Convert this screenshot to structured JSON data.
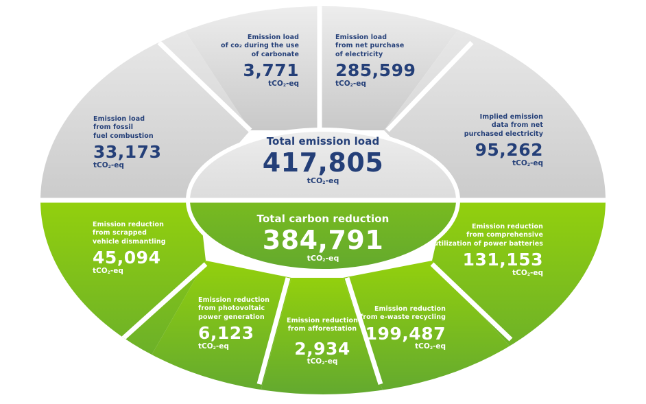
{
  "colors": {
    "grey_light": "#ececec",
    "grey_dark": "#c9c9c9",
    "green_light": "#92cf0e",
    "green_dark": "#62a82f",
    "text_blue": "#243f78",
    "text_white": "#ffffff",
    "divider": "#ffffff"
  },
  "unit": "tCO",
  "unit_sub": "2",
  "unit_suffix": "-eq",
  "emission": {
    "total": {
      "title": "Total emission load",
      "value": "417,805"
    },
    "sectors": [
      {
        "caption": "Emission load\nfrom fossil\nfuel combustion",
        "value": "33,173"
      },
      {
        "caption": "Emission load\nof co₂ during the use\nof carbonate",
        "value": "3,771"
      },
      {
        "caption": "Emission load\nfrom net purchase\nof electricity",
        "value": "285,599"
      },
      {
        "caption": "Implied emission\ndata from net\npurchased electricity",
        "value": "95,262"
      }
    ]
  },
  "reduction": {
    "total": {
      "title": "Total carbon reduction",
      "value": "384,791"
    },
    "sectors": [
      {
        "caption": "Emission reduction\nfrom scrapped\nvehicle dismantling",
        "value": "45,094"
      },
      {
        "caption": "Emission reduction\nfrom photovoltaic\npower generation",
        "value": "6,123"
      },
      {
        "caption": "Emission reduction\nfrom afforestation",
        "value": "2,934"
      },
      {
        "caption": "Emission reduction\nfrom e-waste recycling",
        "value": "199,487"
      },
      {
        "caption": "Emission reduction\nfrom comprehensive\nutilization of power batteries",
        "value": "131,153"
      }
    ]
  }
}
